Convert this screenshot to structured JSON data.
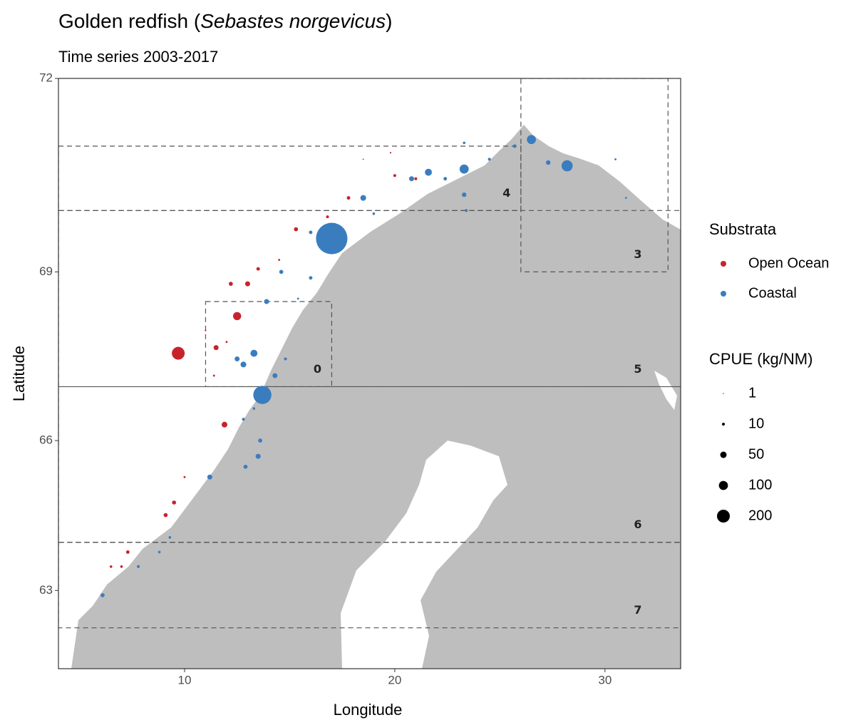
{
  "chart_data": {
    "type": "bubble-map",
    "title": [
      "Golden redfish (",
      "Sebastes norgevicus",
      ")"
    ],
    "subtitle": "Time series 2003-2017",
    "x_label": "Longitude",
    "y_label": "Latitude",
    "xlim": [
      4.0,
      33.6
    ],
    "xticks": [
      10,
      20,
      30
    ],
    "ylim": [
      61.3,
      72
    ],
    "yticks": [
      63,
      66,
      69,
      72
    ],
    "y_projection": "mercator",
    "legend_title": "Substrata",
    "series": [
      {
        "name": "Open Ocean",
        "color": "#c8232c",
        "x": [
          9.7,
          12.5,
          11.9,
          11.5,
          12.2,
          9.5,
          9.1,
          7.3,
          6.5,
          7.0,
          10.0,
          13.0,
          13.5,
          15.3,
          17.8,
          20.0,
          21.0,
          16.8,
          19.8,
          14.5,
          11.4,
          12.0,
          11.0,
          18.5
        ],
        "values": [
          67.6,
          68.25,
          66.3,
          67.7,
          68.8,
          64.8,
          64.55,
          63.8,
          63.5,
          63.5,
          65.3,
          68.8,
          69.05,
          69.7,
          70.2,
          70.55,
          70.5,
          69.9,
          70.9,
          69.2,
          67.2,
          67.8,
          68.0,
          70.8
        ],
        "sizes": [
          200,
          80,
          40,
          30,
          20,
          20,
          20,
          15,
          8,
          8,
          5,
          30,
          15,
          20,
          15,
          10,
          10,
          10,
          3,
          5,
          5,
          5,
          3,
          2
        ]
      },
      {
        "name": "Coastal",
        "color": "#3a7dbf",
        "x": [
          17.0,
          13.7,
          28.2,
          26.5,
          23.3,
          21.6,
          18.5,
          20.8,
          23.3,
          13.3,
          12.8,
          12.5,
          13.9,
          14.3,
          13.5,
          12.9,
          11.2,
          6.1,
          14.6,
          16.0,
          24.5,
          25.7,
          27.3,
          22.4,
          23.4,
          13.6,
          12.8,
          7.8,
          8.8,
          9.3,
          16.0,
          23.3,
          30.5,
          31.0,
          19.0,
          15.4,
          14.8,
          13.3
        ],
        "values": [
          69.55,
          66.85,
          70.7,
          71.1,
          70.65,
          70.6,
          70.2,
          70.5,
          70.25,
          67.6,
          67.4,
          67.5,
          68.5,
          67.2,
          65.7,
          65.5,
          65.3,
          62.9,
          69.0,
          68.9,
          70.8,
          71.0,
          70.75,
          70.5,
          70.0,
          66.0,
          66.4,
          63.5,
          63.8,
          64.1,
          69.65,
          71.05,
          70.8,
          70.2,
          69.95,
          68.55,
          67.5,
          66.6
        ],
        "sizes": [
          1200,
          400,
          150,
          100,
          100,
          60,
          40,
          30,
          25,
          60,
          40,
          30,
          30,
          30,
          30,
          20,
          30,
          20,
          20,
          15,
          10,
          15,
          25,
          15,
          10,
          20,
          10,
          10,
          8,
          8,
          15,
          8,
          5,
          5,
          8,
          5,
          10,
          8
        ]
      }
    ],
    "size_legend": {
      "title": "CPUE (kg/NM)",
      "values": [
        1,
        10,
        50,
        100,
        200
      ]
    },
    "zones": [
      {
        "label": "0",
        "lon": [
          11,
          17
        ],
        "lat": [
          67,
          68.5
        ]
      },
      {
        "label": "3",
        "lon": [
          26,
          33
        ],
        "lat": [
          69,
          72
        ]
      },
      {
        "label": "4",
        "lon": [
          4,
          26
        ],
        "lat": [
          70,
          71
        ]
      },
      {
        "label": "5",
        "lon": [
          4,
          34
        ],
        "lat": [
          67,
          70
        ]
      },
      {
        "label": "6",
        "lon": [
          4,
          34
        ],
        "lat": [
          64,
          67
        ]
      },
      {
        "label": "7",
        "lon": [
          4,
          34
        ],
        "lat": [
          62.2,
          64
        ]
      }
    ]
  }
}
